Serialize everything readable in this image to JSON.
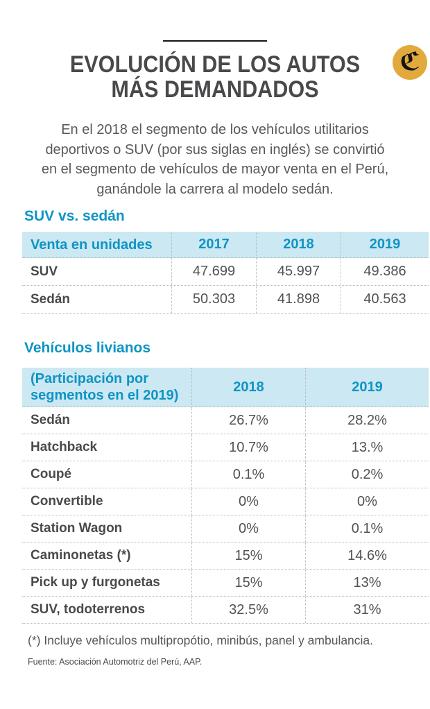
{
  "brand": {
    "logo_glyph": "ℭ",
    "logo_color": "#e2a93d"
  },
  "title": {
    "line1": "EVOLUCIÓN DE LOS AUTOS",
    "line2": "MÁS DEMANDADOS"
  },
  "intro": {
    "lines": [
      "En el 2018 el segmento de los vehículos utilitarios",
      "deportivos o SUV (por sus siglas en inglés) se convirtió",
      "en el segmento de vehículos de mayor venta en el Perú,",
      "ganándole la carrera al modelo sedán."
    ]
  },
  "chart_data": [
    {
      "type": "table",
      "title": "SUV vs. sedán",
      "columns": [
        "Venta en unidades",
        "2017",
        "2018",
        "2019"
      ],
      "rows": [
        [
          "SUV",
          "47.699",
          "45.997",
          "49.386"
        ],
        [
          "Sedán",
          "50.303",
          "41.898",
          "40.563"
        ]
      ]
    },
    {
      "type": "table",
      "title": "Vehículos livianos",
      "columns": [
        "(Participación por segmentos en el 2019)",
        "2018",
        "2019"
      ],
      "rows": [
        [
          "Sedán",
          "26.7%",
          "28.2%"
        ],
        [
          "Hatchback",
          "10.7%",
          "13.%"
        ],
        [
          "Coupé",
          "0.1%",
          "0.2%"
        ],
        [
          "Convertible",
          "0%",
          "0%"
        ],
        [
          "Station Wagon",
          "0%",
          "0.1%"
        ],
        [
          "Caminonetas (*)",
          "15%",
          "14.6%"
        ],
        [
          "Pick up y furgonetas",
          "15%",
          "13%"
        ],
        [
          "SUV, todoterrenos",
          "32.5%",
          "31%"
        ]
      ]
    }
  ],
  "footnote": "(*) Incluye vehículos multipropótio, minibús, panel y ambulancia.",
  "source": "Fuente: Asociación Automotriz del Perú, AAP.",
  "colors": {
    "accent_blue": "#0e94c5",
    "table_header_bg": "#cce8f2",
    "title_gray": "#48494b",
    "body_gray": "#58595b",
    "logo_gold": "#e2a93d"
  }
}
